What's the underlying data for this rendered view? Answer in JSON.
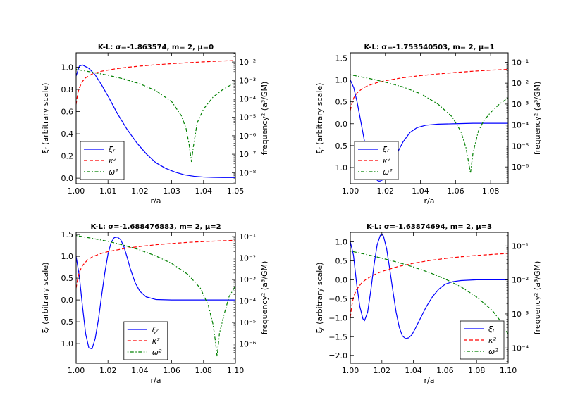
{
  "chart_data": [
    {
      "type": "line",
      "title": "K-L: σ=-1.863574, m= 2, μ=0",
      "xlabel": "r/a",
      "ylabel": "ξ_r (arbitrary scale)",
      "ylabel2": "frequency² (a³/GM)",
      "xlim": [
        1.0,
        1.05
      ],
      "ylim": [
        -0.05,
        1.13
      ],
      "y2lim_log": [
        -8.6,
        -1.5
      ],
      "xticks": [
        "1.00",
        "1.01",
        "1.02",
        "1.03",
        "1.04",
        "1.05"
      ],
      "xtick_values": [
        1.0,
        1.01,
        1.02,
        1.03,
        1.04,
        1.05
      ],
      "yticks": [
        "0.0",
        "0.2",
        "0.4",
        "0.6",
        "0.8",
        "1.0"
      ],
      "ytick_values": [
        0,
        0.2,
        0.4,
        0.6,
        0.8,
        1.0
      ],
      "y2tick_exponents": [
        -8,
        -7,
        -6,
        -5,
        -4,
        -3,
        -2
      ],
      "legend": {
        "position": "lower-left",
        "entries": [
          "ξ_r",
          "κ²",
          "ω²"
        ]
      },
      "series": [
        {
          "name": "ξ_r",
          "axis": "left",
          "color": "#0000ff",
          "style": "solid",
          "x": [
            1.0,
            1.001,
            1.002,
            1.004,
            1.006,
            1.008,
            1.01,
            1.013,
            1.016,
            1.019,
            1.022,
            1.025,
            1.028,
            1.031,
            1.034,
            1.037,
            1.04,
            1.043,
            1.046,
            1.05
          ],
          "y": [
            0.92,
            1.01,
            1.02,
            0.99,
            0.93,
            0.84,
            0.74,
            0.58,
            0.44,
            0.32,
            0.22,
            0.14,
            0.09,
            0.055,
            0.03,
            0.017,
            0.01,
            0.007,
            0.005,
            0.005
          ]
        },
        {
          "name": "κ²",
          "axis": "right_log",
          "color": "#ff0000",
          "style": "dashed",
          "x": [
            1.0,
            1.0005,
            1.001,
            1.002,
            1.003,
            1.005,
            1.008,
            1.012,
            1.016,
            1.02,
            1.025,
            1.03,
            1.035,
            1.04,
            1.045,
            1.05
          ],
          "y": [
            -4.3,
            -3.7,
            -3.4,
            -3.05,
            -2.85,
            -2.65,
            -2.5,
            -2.38,
            -2.29,
            -2.22,
            -2.15,
            -2.09,
            -2.04,
            -1.99,
            -1.95,
            -1.92
          ]
        },
        {
          "name": "ω²",
          "axis": "right_log",
          "color": "#008000",
          "style": "dashdot",
          "x": [
            1.0,
            1.005,
            1.01,
            1.015,
            1.02,
            1.025,
            1.03,
            1.033,
            1.0345,
            1.0355,
            1.0362,
            1.0368,
            1.038,
            1.04,
            1.043,
            1.046,
            1.05
          ],
          "y": [
            -2.4,
            -2.55,
            -2.72,
            -2.92,
            -3.18,
            -3.55,
            -4.15,
            -4.9,
            -5.6,
            -6.5,
            -7.4,
            -6.6,
            -5.3,
            -4.55,
            -3.9,
            -3.5,
            -3.1
          ]
        }
      ]
    },
    {
      "type": "line",
      "title": "K-L: σ=-1.753540503, m= 2, μ=1",
      "xlabel": "r/a",
      "ylabel": "ξ_r (arbitrary scale)",
      "ylabel2": "frequency² (a³/GM)",
      "xlim": [
        1.0,
        1.09
      ],
      "ylim": [
        -1.37,
        1.62
      ],
      "y2lim_log": [
        -6.8,
        -0.55
      ],
      "xticks": [
        "1.00",
        "1.02",
        "1.04",
        "1.06",
        "1.08"
      ],
      "xtick_values": [
        1.0,
        1.02,
        1.04,
        1.06,
        1.08
      ],
      "yticks": [
        "−1.0",
        "−0.5",
        "0.0",
        "0.5",
        "1.0",
        "1.5"
      ],
      "ytick_values": [
        -1.0,
        -0.5,
        0,
        0.5,
        1.0,
        1.5
      ],
      "y2tick_exponents": [
        -6,
        -5,
        -4,
        -3,
        -2,
        -1
      ],
      "legend": {
        "position": "lower-left",
        "entries": [
          "ξ_r",
          "κ²",
          "ω²"
        ]
      },
      "series": [
        {
          "name": "ξ_r",
          "axis": "left",
          "color": "#0000ff",
          "style": "solid",
          "x": [
            1.0,
            1.002,
            1.004,
            1.006,
            1.008,
            1.01,
            1.012,
            1.014,
            1.016,
            1.017,
            1.019,
            1.021,
            1.024,
            1.027,
            1.03,
            1.034,
            1.038,
            1.043,
            1.05,
            1.06,
            1.07,
            1.08,
            1.09
          ],
          "y": [
            1.0,
            0.82,
            0.47,
            0.05,
            -0.38,
            -0.78,
            -1.08,
            -1.25,
            -1.31,
            -1.31,
            -1.27,
            -1.15,
            -0.92,
            -0.65,
            -0.42,
            -0.2,
            -0.09,
            -0.035,
            -0.01,
            0.0,
            0.01,
            0.01,
            0.01
          ]
        },
        {
          "name": "κ²",
          "axis": "right_log",
          "color": "#ff0000",
          "style": "dashed",
          "x": [
            1.0,
            1.001,
            1.002,
            1.004,
            1.007,
            1.01,
            1.015,
            1.02,
            1.03,
            1.04,
            1.05,
            1.06,
            1.07,
            1.08,
            1.09
          ],
          "y": [
            -3.3,
            -2.95,
            -2.7,
            -2.45,
            -2.25,
            -2.12,
            -1.98,
            -1.88,
            -1.74,
            -1.64,
            -1.56,
            -1.49,
            -1.43,
            -1.38,
            -1.34
          ]
        },
        {
          "name": "ω²",
          "axis": "right_log",
          "color": "#008000",
          "style": "dashdot",
          "x": [
            1.0,
            1.01,
            1.02,
            1.03,
            1.04,
            1.05,
            1.058,
            1.063,
            1.066,
            1.0675,
            1.0685,
            1.07,
            1.073,
            1.076,
            1.08,
            1.085,
            1.09
          ],
          "y": [
            -1.6,
            -1.76,
            -1.95,
            -2.18,
            -2.5,
            -3.0,
            -3.6,
            -4.3,
            -5.1,
            -5.8,
            -6.3,
            -5.3,
            -4.3,
            -3.8,
            -3.4,
            -3.0,
            -2.7
          ]
        }
      ]
    },
    {
      "type": "line",
      "title": "K-L: σ=-1.688476883, m= 2, μ=2",
      "xlabel": "r/a",
      "ylabel": "ξ_r (arbitrary scale)",
      "ylabel2": "frequency² (a³/GM)",
      "xlim": [
        1.0,
        1.1
      ],
      "ylim": [
        -1.45,
        1.55
      ],
      "y2lim_log": [
        -6.9,
        -0.8
      ],
      "xticks": [
        "1.00",
        "1.02",
        "1.04",
        "1.06",
        "1.08",
        "1.10"
      ],
      "xtick_values": [
        1.0,
        1.02,
        1.04,
        1.06,
        1.08,
        1.1
      ],
      "yticks": [
        "−1.0",
        "−0.5",
        "0.0",
        "0.5",
        "1.0",
        "1.5"
      ],
      "ytick_values": [
        -1.0,
        -0.5,
        0,
        0.5,
        1.0,
        1.5
      ],
      "y2tick_exponents": [
        -6,
        -5,
        -4,
        -3,
        -2,
        -1
      ],
      "legend": {
        "position": "lower-center",
        "entries": [
          "ξ_r",
          "κ²",
          "ω²"
        ]
      },
      "series": [
        {
          "name": "ξ_r",
          "axis": "left",
          "color": "#0000ff",
          "style": "solid",
          "x": [
            1.0,
            1.002,
            1.004,
            1.006,
            1.008,
            1.01,
            1.012,
            1.014,
            1.016,
            1.018,
            1.02,
            1.022,
            1.024,
            1.026,
            1.028,
            1.03,
            1.032,
            1.034,
            1.037,
            1.04,
            1.044,
            1.05,
            1.06,
            1.07,
            1.08,
            1.09,
            1.1
          ],
          "y": [
            1.0,
            0.55,
            -0.15,
            -0.78,
            -1.1,
            -1.12,
            -0.88,
            -0.45,
            0.1,
            0.62,
            1.05,
            1.32,
            1.43,
            1.44,
            1.38,
            1.22,
            0.98,
            0.72,
            0.4,
            0.2,
            0.07,
            0.01,
            0.0,
            0.0,
            0.0,
            0.0,
            0.0
          ]
        },
        {
          "name": "κ²",
          "axis": "right_log",
          "color": "#ff0000",
          "style": "dashed",
          "x": [
            1.0,
            1.001,
            1.002,
            1.004,
            1.007,
            1.01,
            1.015,
            1.02,
            1.03,
            1.04,
            1.05,
            1.06,
            1.07,
            1.08,
            1.09,
            1.1
          ],
          "y": [
            -3.4,
            -2.95,
            -2.65,
            -2.35,
            -2.1,
            -1.95,
            -1.8,
            -1.7,
            -1.56,
            -1.46,
            -1.38,
            -1.32,
            -1.27,
            -1.23,
            -1.2,
            -1.17
          ]
        },
        {
          "name": "ω²",
          "axis": "right_log",
          "color": "#008000",
          "style": "dashdot",
          "x": [
            1.0,
            1.01,
            1.02,
            1.03,
            1.04,
            1.05,
            1.06,
            1.07,
            1.078,
            1.083,
            1.086,
            1.0875,
            1.0885,
            1.09,
            1.093,
            1.096,
            1.1
          ],
          "y": [
            -0.95,
            -1.08,
            -1.22,
            -1.4,
            -1.62,
            -1.9,
            -2.25,
            -2.75,
            -3.4,
            -4.2,
            -5.1,
            -5.9,
            -6.6,
            -5.5,
            -4.6,
            -3.8,
            -3.3
          ]
        }
      ]
    },
    {
      "type": "line",
      "title": "K-L: σ=-1.63874694, m= 2, μ=3",
      "xlabel": "r/a",
      "ylabel": "ξ_r (arbitrary scale)",
      "ylabel2": "frequency² (a³/GM)",
      "xlim": [
        1.0,
        1.1
      ],
      "ylim": [
        -2.2,
        1.25
      ],
      "y2lim_log": [
        -4.45,
        -0.6
      ],
      "xticks": [
        "1.00",
        "1.02",
        "1.04",
        "1.06",
        "1.08",
        "1.10"
      ],
      "xtick_values": [
        1.0,
        1.02,
        1.04,
        1.06,
        1.08,
        1.1
      ],
      "yticks": [
        "−2.0",
        "−1.5",
        "−1.0",
        "−0.5",
        "0.0",
        "0.5",
        "1.0"
      ],
      "ytick_values": [
        -2.0,
        -1.5,
        -1.0,
        -0.5,
        0,
        0.5,
        1.0
      ],
      "y2tick_exponents": [
        -4,
        -3,
        -2,
        -1
      ],
      "legend": {
        "position": "lower-right",
        "entries": [
          "ξ_r",
          "κ²",
          "ω²"
        ]
      },
      "series": [
        {
          "name": "ξ_r",
          "axis": "left",
          "color": "#0000ff",
          "style": "solid",
          "x": [
            1.0,
            1.002,
            1.004,
            1.006,
            1.008,
            1.009,
            1.011,
            1.013,
            1.015,
            1.017,
            1.019,
            1.02,
            1.021,
            1.023,
            1.025,
            1.027,
            1.029,
            1.031,
            1.033,
            1.035,
            1.037,
            1.039,
            1.041,
            1.044,
            1.048,
            1.052,
            1.056,
            1.06,
            1.065,
            1.07,
            1.08,
            1.09,
            1.1
          ],
          "y": [
            1.0,
            0.65,
            -0.1,
            -0.7,
            -1.03,
            -1.08,
            -0.85,
            -0.28,
            0.38,
            0.92,
            1.17,
            1.2,
            1.15,
            0.82,
            0.28,
            -0.3,
            -0.85,
            -1.25,
            -1.48,
            -1.55,
            -1.53,
            -1.45,
            -1.3,
            -1.05,
            -0.72,
            -0.45,
            -0.25,
            -0.12,
            -0.05,
            -0.02,
            0.0,
            0.0,
            0.0
          ]
        },
        {
          "name": "κ²",
          "axis": "right_log",
          "color": "#ff0000",
          "style": "dashed",
          "x": [
            1.0,
            1.001,
            1.002,
            1.004,
            1.007,
            1.01,
            1.015,
            1.02,
            1.03,
            1.04,
            1.05,
            1.06,
            1.07,
            1.08,
            1.09,
            1.1
          ],
          "y": [
            -3.1,
            -2.75,
            -2.5,
            -2.28,
            -2.1,
            -1.98,
            -1.85,
            -1.75,
            -1.61,
            -1.51,
            -1.43,
            -1.37,
            -1.32,
            -1.28,
            -1.25,
            -1.22
          ]
        },
        {
          "name": "ω²",
          "axis": "right_log",
          "color": "#008000",
          "style": "dashdot",
          "x": [
            1.0,
            1.01,
            1.02,
            1.03,
            1.04,
            1.05,
            1.06,
            1.07,
            1.08,
            1.09,
            1.095,
            1.1
          ],
          "y": [
            -1.15,
            -1.25,
            -1.36,
            -1.48,
            -1.62,
            -1.78,
            -1.97,
            -2.2,
            -2.5,
            -2.9,
            -3.2,
            -3.6
          ]
        }
      ]
    }
  ]
}
